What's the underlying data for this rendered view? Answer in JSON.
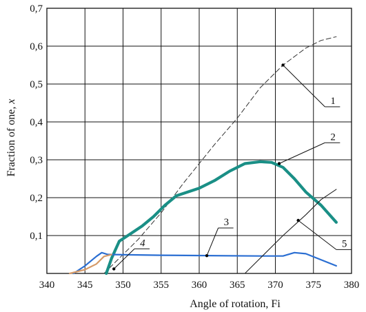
{
  "chart_data": {
    "type": "line",
    "title": "",
    "xlabel": "Angle of rotation, Fi",
    "ylabel_text": "Fraction of one, ",
    "ylabel_var": "x",
    "xlim": [
      340,
      380
    ],
    "ylim": [
      0,
      0.7
    ],
    "grid": true,
    "x_ticks": [
      "340",
      "345",
      "350",
      "355",
      "360",
      "365",
      "370",
      "375",
      "380"
    ],
    "y_ticks": [
      "0,1",
      "0,2",
      "0,3",
      "0,4",
      "0,5",
      "0,6",
      "0,7"
    ],
    "series": [
      {
        "name": "1",
        "color": "#333333",
        "style": "dashed",
        "points": [
          [
            347.5,
            0.0
          ],
          [
            349,
            0.03
          ],
          [
            352,
            0.09
          ],
          [
            355,
            0.16
          ],
          [
            358,
            0.24
          ],
          [
            360,
            0.29
          ],
          [
            362,
            0.34
          ],
          [
            365,
            0.41
          ],
          [
            368,
            0.49
          ],
          [
            371,
            0.55
          ],
          [
            374,
            0.595
          ],
          [
            376,
            0.615
          ],
          [
            378,
            0.625
          ]
        ]
      },
      {
        "name": "2",
        "color": "#1a8f86",
        "style": "thick",
        "points": [
          [
            347.8,
            0.0
          ],
          [
            348.5,
            0.04
          ],
          [
            349.5,
            0.085
          ],
          [
            351,
            0.105
          ],
          [
            352.5,
            0.125
          ],
          [
            354,
            0.15
          ],
          [
            355.5,
            0.18
          ],
          [
            357,
            0.205
          ],
          [
            358.5,
            0.215
          ],
          [
            360,
            0.225
          ],
          [
            362,
            0.245
          ],
          [
            364,
            0.27
          ],
          [
            366,
            0.29
          ],
          [
            368,
            0.295
          ],
          [
            369.5,
            0.293
          ],
          [
            371,
            0.28
          ],
          [
            372.5,
            0.25
          ],
          [
            374,
            0.215
          ],
          [
            376,
            0.18
          ],
          [
            378,
            0.135
          ]
        ]
      },
      {
        "name": "3",
        "color": "#2a6ed2",
        "style": "solid",
        "points": [
          [
            343.5,
            0.0
          ],
          [
            345,
            0.02
          ],
          [
            346.5,
            0.045
          ],
          [
            347.2,
            0.055
          ],
          [
            348,
            0.05
          ],
          [
            355,
            0.048
          ],
          [
            361,
            0.047
          ],
          [
            368,
            0.046
          ],
          [
            371,
            0.046
          ],
          [
            372.5,
            0.055
          ],
          [
            374,
            0.052
          ],
          [
            375.5,
            0.04
          ],
          [
            378,
            0.02
          ]
        ]
      },
      {
        "name": "4",
        "color": "#d59a68",
        "style": "solid",
        "points": [
          [
            343,
            0.0
          ],
          [
            345,
            0.01
          ],
          [
            346.5,
            0.025
          ],
          [
            347.5,
            0.045
          ],
          [
            348.5,
            0.05
          ]
        ]
      },
      {
        "name": "5",
        "color": "#222222",
        "style": "thin",
        "points": [
          [
            366,
            0.0
          ],
          [
            368,
            0.04
          ],
          [
            371,
            0.1
          ],
          [
            374,
            0.155
          ],
          [
            376,
            0.195
          ],
          [
            378,
            0.222
          ]
        ]
      }
    ],
    "annotations": [
      {
        "label": "1",
        "point": [
          371,
          0.55
        ],
        "label_at": [
          376.5,
          0.44
        ],
        "italic": false
      },
      {
        "label": "2",
        "point": [
          370.5,
          0.29
        ],
        "label_at": [
          376.5,
          0.345
        ],
        "italic": false
      },
      {
        "label": "3",
        "point": [
          361,
          0.047
        ],
        "label_at": [
          362.5,
          0.12
        ],
        "italic": false
      },
      {
        "label": "4",
        "point": [
          348.8,
          0.012
        ],
        "label_at": [
          351.5,
          0.065
        ],
        "italic": true
      },
      {
        "label": "5",
        "point": [
          373,
          0.14
        ],
        "label_at": [
          378.0,
          0.063
        ],
        "italic": false
      }
    ]
  }
}
